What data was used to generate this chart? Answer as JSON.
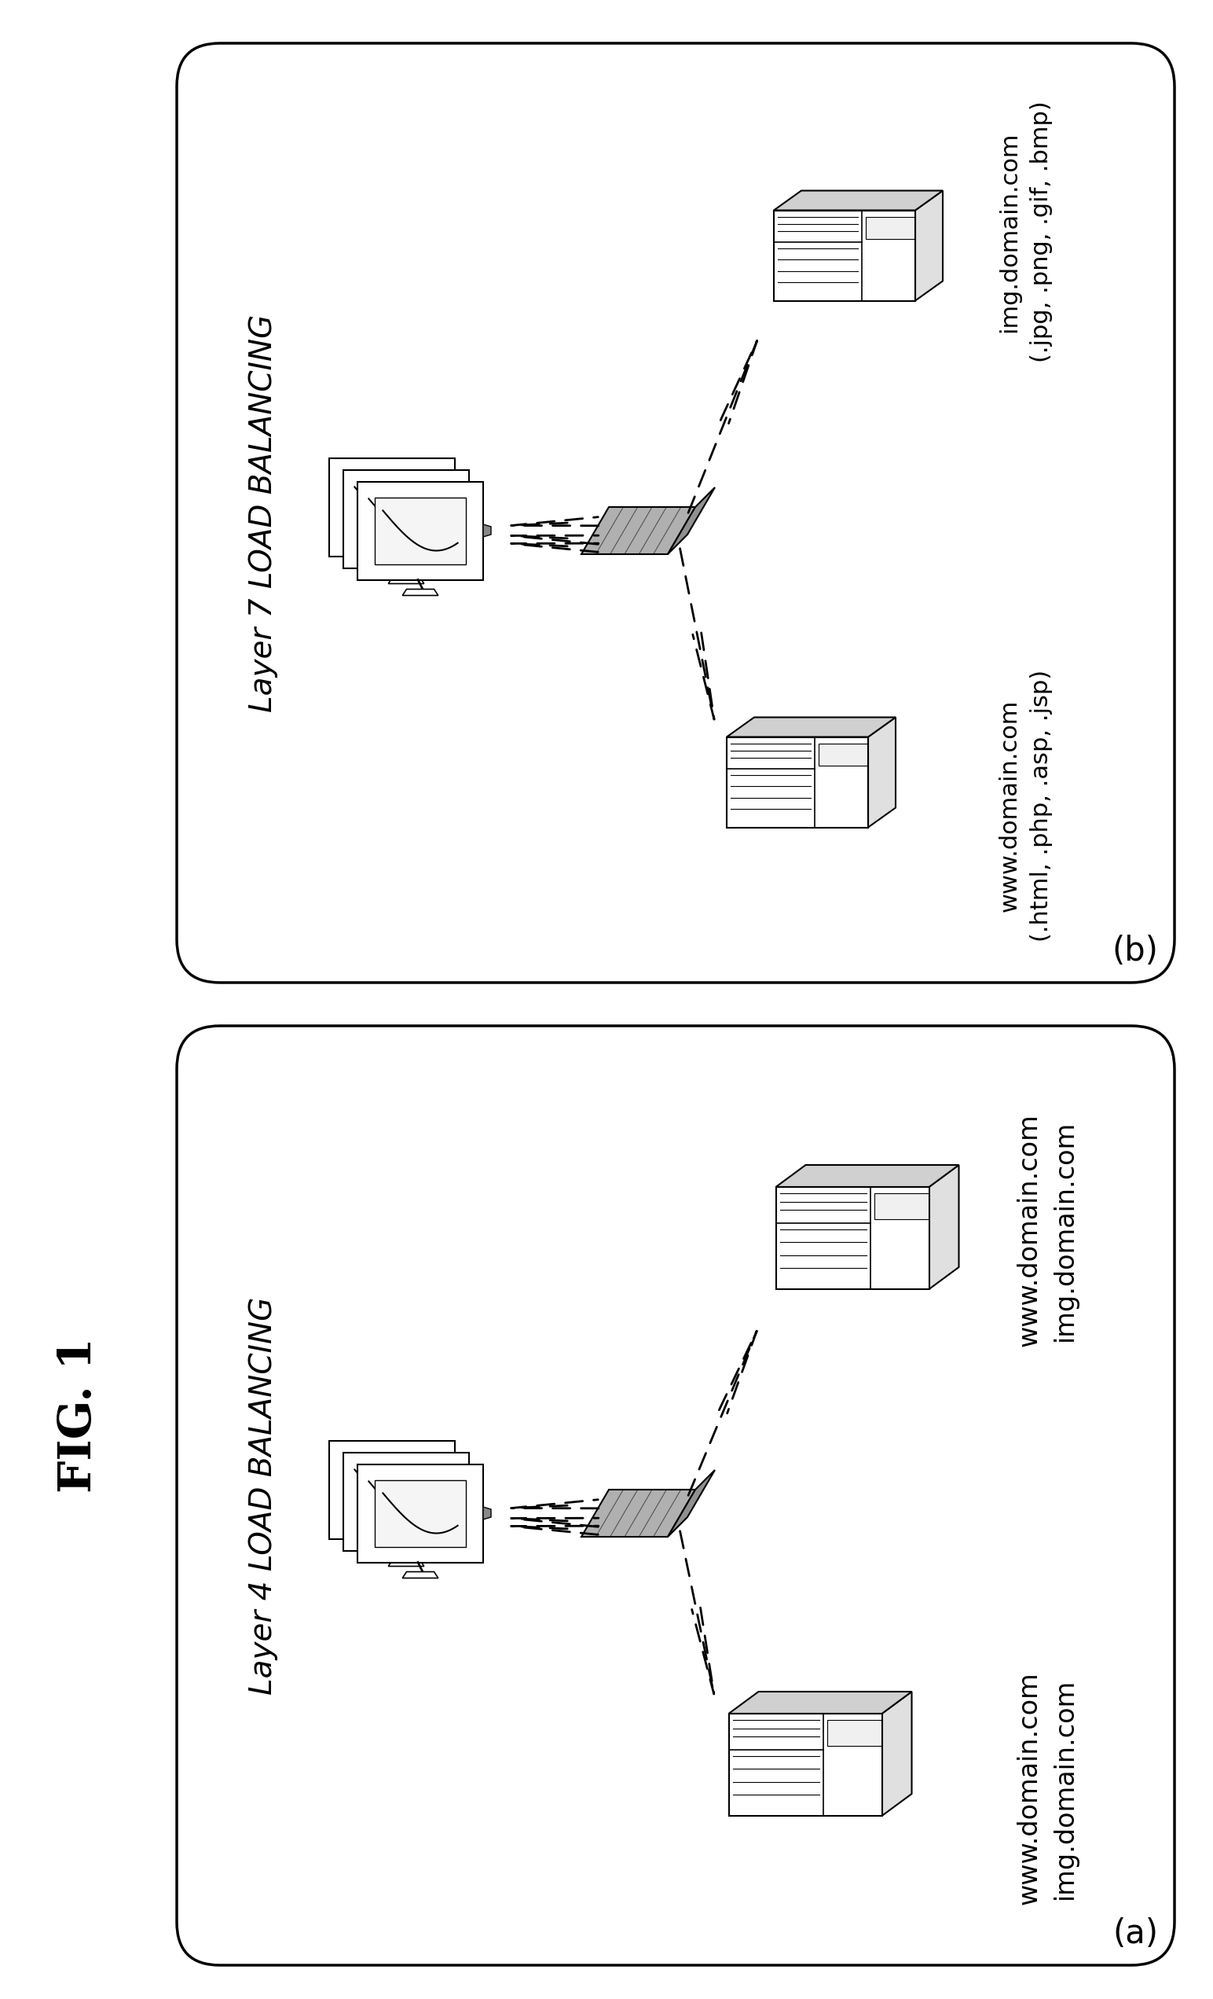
{
  "fig_label": "FIG. 1",
  "panel_a_title": "Layer 4 LOAD BALANCING",
  "panel_b_title": "Layer 7 LOAD BALANCING",
  "panel_a_label": "(a)",
  "panel_b_label": "(b)",
  "panel_a_server1_lines": [
    "www.domain.com",
    "img.domain.com"
  ],
  "panel_a_server2_lines": [
    "www.domain.com",
    "img.domain.com"
  ],
  "panel_b_server1_lines": [
    "img.domain.com",
    "(.jpg, .png, .gif, .bmp)"
  ],
  "panel_b_server2_lines": [
    "www.domain.com",
    "(.html, .php, .asp, .jsp)"
  ],
  "bg_color": "#ffffff",
  "box_edge_color": "#000000",
  "text_color": "#000000"
}
